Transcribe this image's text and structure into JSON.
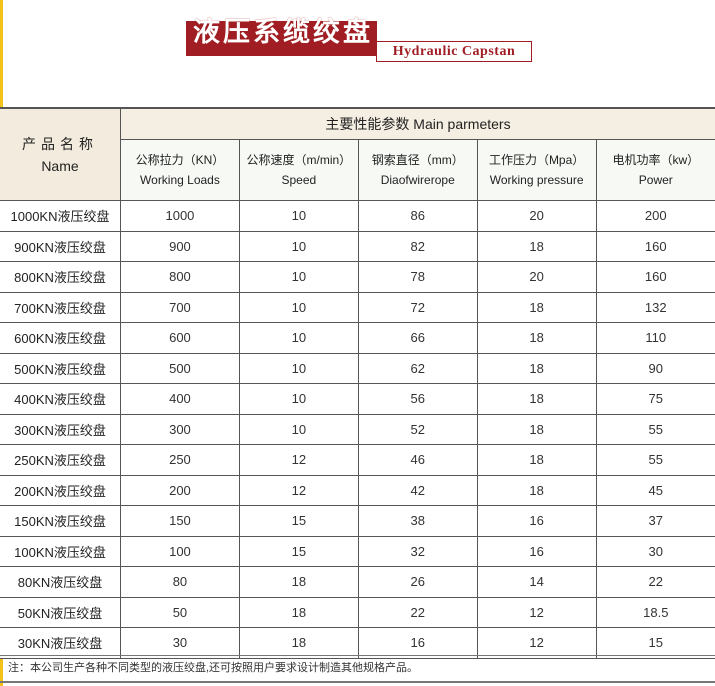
{
  "title_cn": "液压系缆绞盘",
  "title_en": "Hydraulic Capstan",
  "table": {
    "name_header_cn": "产品名称",
    "name_header_en": "Name",
    "main_header": "主要性能参数  Main parmeters",
    "columns": [
      {
        "cn": "公称拉力（KN）",
        "en": "Working Loads"
      },
      {
        "cn": "公称速度（m/min）",
        "en": "Speed"
      },
      {
        "cn": "钢索直径（mm）",
        "en": "Diaofwirerope"
      },
      {
        "cn": "工作压力（Mpa）",
        "en": "Working pressure"
      },
      {
        "cn": "电机功率（kw）",
        "en": "Power"
      }
    ],
    "rows": [
      [
        "1000KN液压绞盘",
        "1000",
        "10",
        "86",
        "20",
        "200"
      ],
      [
        "900KN液压绞盘",
        "900",
        "10",
        "82",
        "18",
        "160"
      ],
      [
        "800KN液压绞盘",
        "800",
        "10",
        "78",
        "20",
        "160"
      ],
      [
        "700KN液压绞盘",
        "700",
        "10",
        "72",
        "18",
        "132"
      ],
      [
        "600KN液压绞盘",
        "600",
        "10",
        "66",
        "18",
        "110"
      ],
      [
        "500KN液压绞盘",
        "500",
        "10",
        "62",
        "18",
        "90"
      ],
      [
        "400KN液压绞盘",
        "400",
        "10",
        "56",
        "18",
        "75"
      ],
      [
        "300KN液压绞盘",
        "300",
        "10",
        "52",
        "18",
        "55"
      ],
      [
        "250KN液压绞盘",
        "250",
        "12",
        "46",
        "18",
        "55"
      ],
      [
        "200KN液压绞盘",
        "200",
        "12",
        "42",
        "18",
        "45"
      ],
      [
        "150KN液压绞盘",
        "150",
        "15",
        "38",
        "16",
        "37"
      ],
      [
        "100KN液压绞盘",
        "100",
        "15",
        "32",
        "16",
        "30"
      ],
      [
        "80KN液压绞盘",
        "80",
        "18",
        "26",
        "14",
        "22"
      ],
      [
        "50KN液压绞盘",
        "50",
        "18",
        "22",
        "12",
        "18.5"
      ],
      [
        "30KN液压绞盘",
        "30",
        "18",
        "16",
        "12",
        "15"
      ]
    ]
  },
  "note": "注：本公司生产各种不同类型的液压绞盘,还可按照用户要求设计制造其他规格产品。",
  "colors": {
    "brand_red": "#a01e23",
    "edge_yellow": "#f2c21a"
  }
}
